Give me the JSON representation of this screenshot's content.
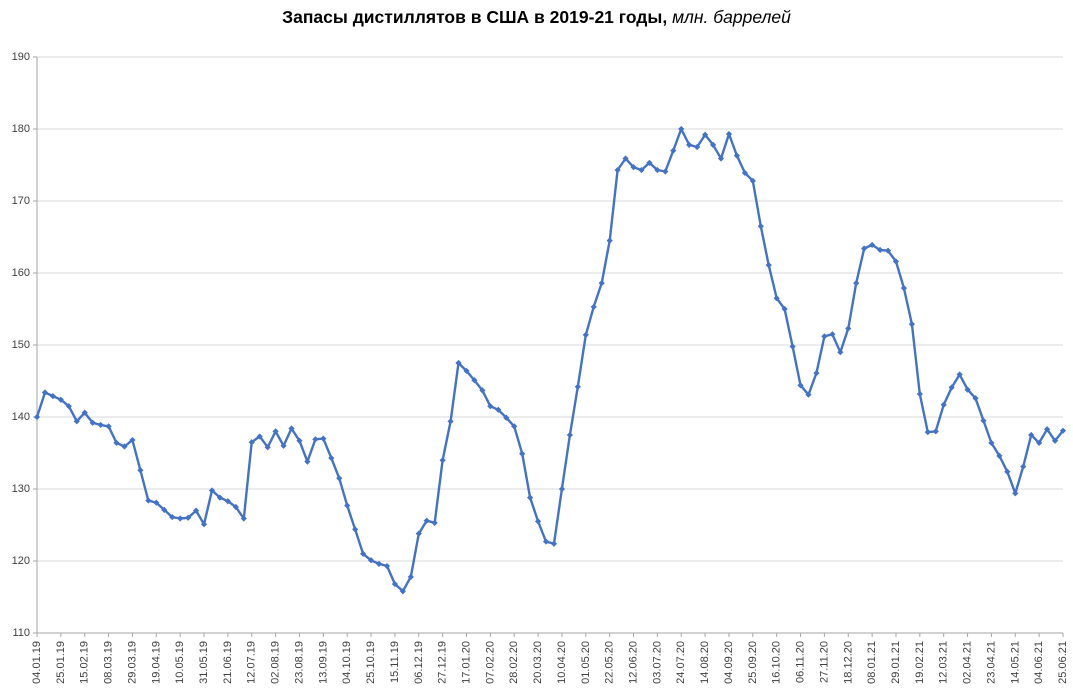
{
  "title": {
    "main": "Запасы дистиллятов в США в 2019-21 годы,",
    "unit_italic": " млн. баррелей"
  },
  "chart_data": {
    "type": "line",
    "title": "Запасы дистиллятов в США в 2019-21 годы, млн. баррелей",
    "xlabel": "",
    "ylabel": "",
    "ylim": [
      110,
      190
    ],
    "y_ticks": [
      110,
      120,
      130,
      140,
      150,
      160,
      170,
      180,
      190
    ],
    "grid": "horizontal",
    "legend": "none",
    "marker": "diamond",
    "series_color": "#4472C4",
    "grid_color": "#D9D9D9",
    "axis_color": "#A6A6A6",
    "line_width": 2.4,
    "x_label_every": 3,
    "x_tick_labels_shown": [
      "04.01.19",
      "25.01.19",
      "15.02.19",
      "08.03.19",
      "29.03.19",
      "19.04.19",
      "10.05.19",
      "31.05.19",
      "21.06.19",
      "12.07.19",
      "02.08.19",
      "23.08.19",
      "13.09.19",
      "04.10.19",
      "25.10.19",
      "15.11.19",
      "06.12.19",
      "27.12.19",
      "17.01.20",
      "07.02.20",
      "28.02.20",
      "20.03.20",
      "10.04.20",
      "01.05.20",
      "22.05.20",
      "12.06.20",
      "03.07.20",
      "24.07.20",
      "14.08.20",
      "04.09.20",
      "25.09.20",
      "16.10.20",
      "06.11.20",
      "27.11.20",
      "18.12.20",
      "08.01.21",
      "29.01.21",
      "19.02.21",
      "12.03.21",
      "02.04.21",
      "23.04.21",
      "14.05.21",
      "04.06.21",
      "25.06.21"
    ],
    "x": [
      "04.01.19",
      "11.01.19",
      "18.01.19",
      "25.01.19",
      "01.02.19",
      "08.02.19",
      "15.02.19",
      "22.02.19",
      "01.03.19",
      "08.03.19",
      "15.03.19",
      "22.03.19",
      "29.03.19",
      "05.04.19",
      "12.04.19",
      "19.04.19",
      "26.04.19",
      "03.05.19",
      "10.05.19",
      "17.05.19",
      "24.05.19",
      "31.05.19",
      "07.06.19",
      "14.06.19",
      "21.06.19",
      "28.06.19",
      "05.07.19",
      "12.07.19",
      "19.07.19",
      "26.07.19",
      "02.08.19",
      "09.08.19",
      "16.08.19",
      "23.08.19",
      "30.08.19",
      "06.09.19",
      "13.09.19",
      "20.09.19",
      "27.09.19",
      "04.10.19",
      "11.10.19",
      "18.10.19",
      "25.10.19",
      "01.11.19",
      "08.11.19",
      "15.11.19",
      "22.11.19",
      "29.11.19",
      "06.12.19",
      "13.12.19",
      "20.12.19",
      "27.12.19",
      "03.01.20",
      "10.01.20",
      "17.01.20",
      "24.01.20",
      "31.01.20",
      "07.02.20",
      "14.02.20",
      "21.02.20",
      "28.02.20",
      "06.03.20",
      "13.03.20",
      "20.03.20",
      "27.03.20",
      "03.04.20",
      "10.04.20",
      "17.04.20",
      "24.04.20",
      "01.05.20",
      "08.05.20",
      "15.05.20",
      "22.05.20",
      "29.05.20",
      "05.06.20",
      "12.06.20",
      "19.06.20",
      "26.06.20",
      "03.07.20",
      "10.07.20",
      "17.07.20",
      "24.07.20",
      "31.07.20",
      "07.08.20",
      "14.08.20",
      "21.08.20",
      "28.08.20",
      "04.09.20",
      "11.09.20",
      "18.09.20",
      "25.09.20",
      "02.10.20",
      "09.10.20",
      "16.10.20",
      "23.10.20",
      "30.10.20",
      "06.11.20",
      "13.11.20",
      "20.11.20",
      "27.11.20",
      "04.12.20",
      "11.12.20",
      "18.12.20",
      "25.12.20",
      "01.01.21",
      "08.01.21",
      "15.01.21",
      "22.01.21",
      "29.01.21",
      "05.02.21",
      "12.02.21",
      "19.02.21",
      "26.02.21",
      "05.03.21",
      "12.03.21",
      "19.03.21",
      "26.03.21",
      "02.04.21",
      "09.04.21",
      "16.04.21",
      "23.04.21",
      "30.04.21",
      "07.05.21",
      "14.05.21",
      "21.05.21",
      "28.05.21",
      "04.06.21",
      "11.06.21",
      "18.06.21",
      "25.06.21"
    ],
    "values": [
      140.0,
      143.4,
      142.9,
      142.4,
      141.5,
      139.4,
      140.6,
      139.2,
      138.9,
      138.7,
      136.4,
      135.9,
      136.8,
      132.6,
      128.4,
      128.1,
      127.1,
      126.1,
      125.9,
      126.0,
      127.0,
      125.1,
      129.8,
      128.8,
      128.3,
      127.5,
      125.9,
      136.5,
      137.3,
      135.8,
      138.0,
      136.0,
      138.4,
      136.7,
      133.8,
      136.9,
      137.0,
      134.3,
      131.5,
      127.7,
      124.4,
      121.0,
      120.1,
      119.6,
      119.3,
      116.8,
      115.8,
      117.8,
      123.8,
      125.6,
      125.3,
      134.0,
      139.4,
      147.5,
      146.4,
      145.1,
      143.7,
      141.5,
      141.0,
      139.9,
      138.7,
      134.9,
      128.8,
      125.5,
      122.7,
      122.4,
      130.0,
      137.5,
      144.2,
      151.4,
      155.3,
      158.6,
      164.5,
      174.3,
      175.9,
      174.7,
      174.3,
      175.3,
      174.3,
      174.1,
      177.0,
      180.0,
      177.8,
      177.5,
      179.2,
      177.8,
      175.9,
      179.3,
      176.3,
      173.9,
      172.8,
      166.5,
      161.1,
      156.5,
      155.0,
      149.8,
      144.4,
      143.1,
      146.1,
      151.2,
      151.5,
      149.0,
      152.3,
      158.6,
      163.4,
      163.9,
      163.2,
      163.1,
      161.6,
      157.9,
      152.9,
      143.2,
      137.9,
      138.0,
      141.7,
      144.1,
      145.9,
      143.8,
      142.6,
      139.5,
      136.4,
      134.6,
      132.4,
      129.4,
      133.1,
      137.5,
      136.4,
      138.3,
      136.7,
      138.1
    ]
  }
}
